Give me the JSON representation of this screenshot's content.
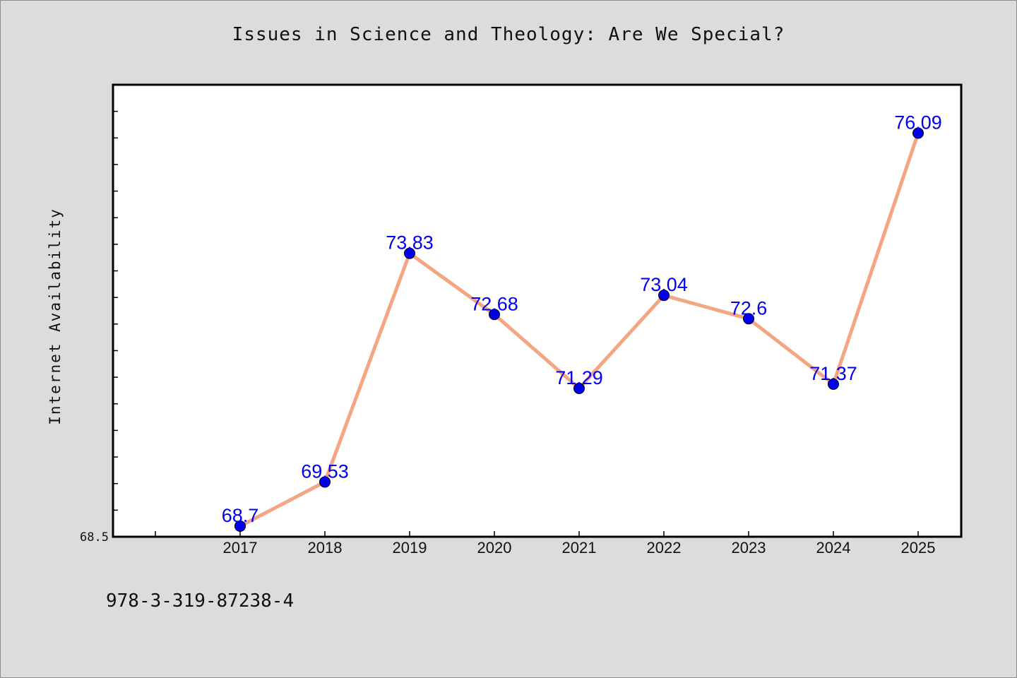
{
  "chart_data": {
    "type": "line",
    "title": "Issues in Science and Theology: Are We Special?",
    "xlabel": "",
    "ylabel": "Internet Availability",
    "categories": [
      "2017",
      "2018",
      "2019",
      "2020",
      "2021",
      "2022",
      "2023",
      "2024",
      "2025"
    ],
    "series": [
      {
        "values": [
          68.7,
          69.53,
          73.83,
          72.68,
          71.29,
          73.04,
          72.6,
          71.37,
          76.09
        ],
        "labels": [
          "68.7",
          "69.53",
          "73.83",
          "72.68",
          "71.29",
          "73.04",
          "72.6",
          "71.37",
          "76.09"
        ]
      }
    ],
    "ylim": [
      68.5,
      77.0
    ],
    "y_tick_labels": [
      "68.5"
    ],
    "line_color": "#f4a582",
    "marker_color": "#0000ee",
    "label_color": "#0000ee",
    "grid": false,
    "legend": "none"
  },
  "footnote": "978-3-319-87238-4"
}
